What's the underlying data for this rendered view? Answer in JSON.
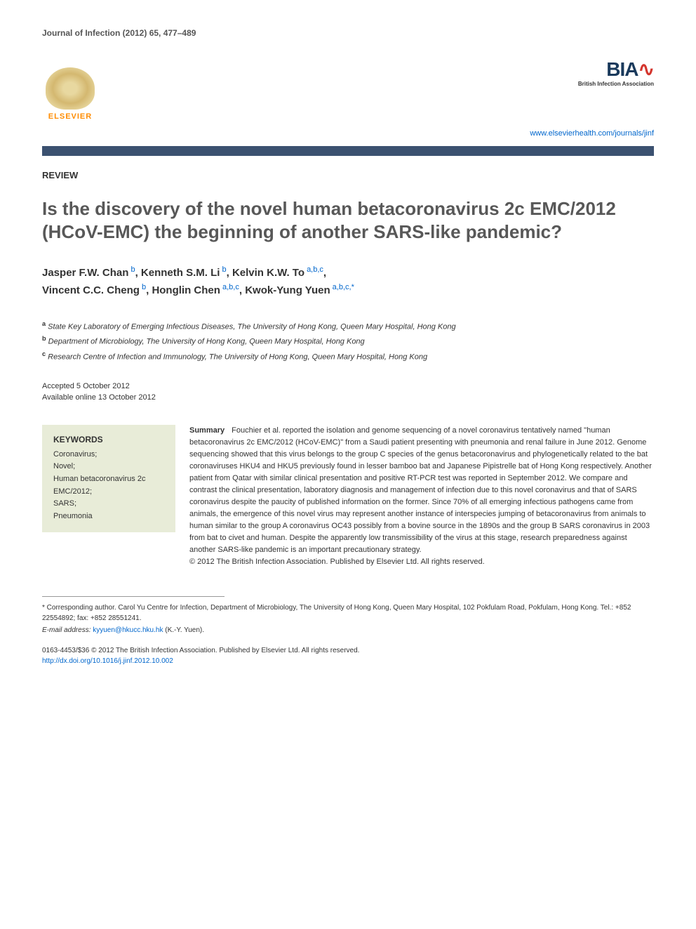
{
  "journal_header": "Journal of Infection (2012) 65, 477–489",
  "publisher": {
    "name": "ELSEVIER",
    "journal_url": "www.elsevierhealth.com/journals/jinf"
  },
  "association": {
    "acronym": "BIA",
    "full_name": "British Infection Association"
  },
  "bar_color": "#3b5170",
  "article_type": "REVIEW",
  "title": "Is the discovery of the novel human betacoronavirus 2c EMC/2012 (HCoV-EMC) the beginning of another SARS-like pandemic?",
  "authors_html_parts": {
    "a1": {
      "name": "Jasper F.W. Chan",
      "sup": "b"
    },
    "a2": {
      "name": "Kenneth S.M. Li",
      "sup": "b"
    },
    "a3": {
      "name": "Kelvin K.W. To",
      "sup": "a,b,c"
    },
    "a4": {
      "name": "Vincent C.C. Cheng",
      "sup": "b"
    },
    "a5": {
      "name": "Honglin Chen",
      "sup": "a,b,c"
    },
    "a6": {
      "name": "Kwok-Yung Yuen",
      "sup": "a,b,c,*"
    }
  },
  "affiliations": {
    "a": "State Key Laboratory of Emerging Infectious Diseases, The University of Hong Kong, Queen Mary Hospital, Hong Kong",
    "b": "Department of Microbiology, The University of Hong Kong, Queen Mary Hospital, Hong Kong",
    "c": "Research Centre of Infection and Immunology, The University of Hong Kong, Queen Mary Hospital, Hong Kong"
  },
  "dates": {
    "accepted": "Accepted 5 October 2012",
    "online": "Available online 13 October 2012"
  },
  "keywords": {
    "heading": "KEYWORDS",
    "items": [
      "Coronavirus;",
      "Novel;",
      "Human betacoronavirus 2c EMC/2012;",
      "SARS;",
      "Pneumonia"
    ],
    "box_bg": "#e8ecd8"
  },
  "summary": {
    "label": "Summary",
    "text": "Fouchier et al. reported the isolation and genome sequencing of a novel coronavirus tentatively named \"human betacoronavirus 2c EMC/2012 (HCoV-EMC)\" from a Saudi patient presenting with pneumonia and renal failure in June 2012. Genome sequencing showed that this virus belongs to the group C species of the genus betacoronavirus and phylogenetically related to the bat coronaviruses HKU4 and HKU5 previously found in lesser bamboo bat and Japanese Pipistrelle bat of Hong Kong respectively. Another patient from Qatar with similar clinical presentation and positive RT-PCR test was reported in September 2012. We compare and contrast the clinical presentation, laboratory diagnosis and management of infection due to this novel coronavirus and that of SARS coronavirus despite the paucity of published information on the former. Since 70% of all emerging infectious pathogens came from animals, the emergence of this novel virus may represent another instance of interspecies jumping of betacoronavirus from animals to human similar to the group A coronavirus OC43 possibly from a bovine source in the 1890s and the group B SARS coronavirus in 2003 from bat to civet and human. Despite the apparently low transmissibility of the virus at this stage, research preparedness against another SARS-like pandemic is an important precautionary strategy.",
    "copyright": "© 2012 The British Infection Association. Published by Elsevier Ltd. All rights reserved."
  },
  "corresponding": {
    "text": "* Corresponding author. Carol Yu Centre for Infection, Department of Microbiology, The University of Hong Kong, Queen Mary Hospital, 102 Pokfulam Road, Pokfulam, Hong Kong. Tel.: +852 22554892; fax: +852 28551241.",
    "email_label": "E-mail address:",
    "email": "kyyuen@hkucc.hku.hk",
    "email_suffix": "(K.-Y. Yuen)."
  },
  "footer": {
    "line1": "0163-4453/$36 © 2012 The British Infection Association. Published by Elsevier Ltd. All rights reserved.",
    "doi": "http://dx.doi.org/10.1016/j.jinf.2012.10.002"
  },
  "colors": {
    "title_gray": "#585858",
    "link_blue": "#0066cc",
    "text": "#333333",
    "elsevier_orange": "#ff8c00"
  }
}
